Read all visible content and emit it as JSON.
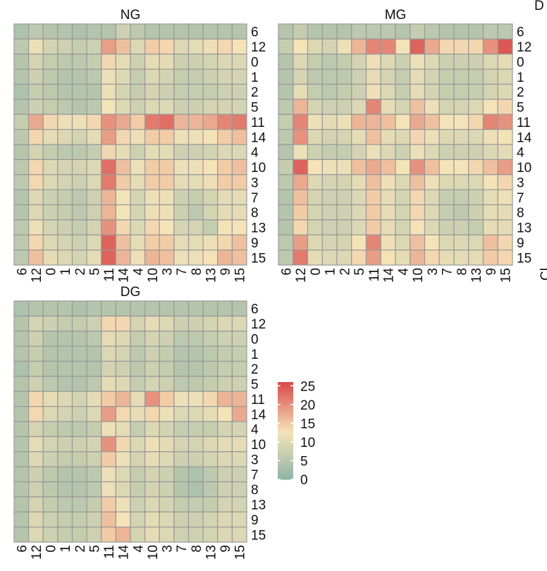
{
  "figure": {
    "edge_letter": "D",
    "edge_rotated_text": "Cl"
  },
  "colors": {
    "low": "#8db3a5",
    "mid": "#f5e3b8",
    "high": "#d94c4c",
    "grid": "#999999"
  },
  "chart_data": [
    {
      "type": "heatmap",
      "title": "NG",
      "x_labels": [
        "6",
        "12",
        "0",
        "1",
        "2",
        "5",
        "11",
        "14",
        "4",
        "10",
        "3",
        "7",
        "8",
        "13",
        "9",
        "15"
      ],
      "y_labels": [
        "6",
        "12",
        "0",
        "1",
        "2",
        "5",
        "11",
        "14",
        "4",
        "10",
        "3",
        "7",
        "8",
        "13",
        "9",
        "15"
      ],
      "values": [
        [
          4,
          6,
          5,
          5,
          4,
          5,
          5,
          8,
          6,
          5,
          5,
          5,
          5,
          5,
          5,
          5
        ],
        [
          6,
          12,
          9,
          8,
          7,
          8,
          19,
          16,
          10,
          15,
          14,
          10,
          11,
          12,
          14,
          13
        ],
        [
          5,
          9,
          7,
          6,
          6,
          7,
          14,
          11,
          8,
          11,
          11,
          8,
          8,
          9,
          10,
          10
        ],
        [
          5,
          8,
          6,
          5,
          5,
          6,
          12,
          10,
          7,
          10,
          9,
          7,
          7,
          8,
          9,
          9
        ],
        [
          4,
          7,
          6,
          5,
          5,
          5,
          12,
          9,
          7,
          9,
          8,
          7,
          7,
          7,
          8,
          8
        ],
        [
          5,
          8,
          7,
          6,
          5,
          6,
          13,
          10,
          8,
          10,
          10,
          8,
          8,
          9,
          9,
          9
        ],
        [
          7,
          18,
          14,
          12,
          12,
          14,
          20,
          18,
          15,
          22,
          23,
          17,
          17,
          18,
          21,
          22
        ],
        [
          6,
          14,
          11,
          10,
          9,
          11,
          19,
          14,
          12,
          15,
          15,
          12,
          12,
          13,
          15,
          16
        ],
        [
          5,
          9,
          7,
          6,
          6,
          7,
          14,
          11,
          8,
          11,
          11,
          8,
          8,
          9,
          10,
          10
        ],
        [
          6,
          14,
          10,
          9,
          9,
          10,
          23,
          16,
          12,
          15,
          15,
          12,
          12,
          13,
          15,
          16
        ],
        [
          6,
          14,
          10,
          9,
          8,
          10,
          22,
          15,
          11,
          15,
          15,
          11,
          11,
          12,
          15,
          15
        ],
        [
          5,
          10,
          8,
          7,
          6,
          8,
          17,
          13,
          9,
          12,
          12,
          8,
          7,
          9,
          11,
          11
        ],
        [
          5,
          10,
          8,
          7,
          6,
          8,
          17,
          13,
          9,
          12,
          12,
          8,
          6,
          9,
          11,
          11
        ],
        [
          6,
          12,
          9,
          8,
          7,
          9,
          20,
          14,
          10,
          14,
          13,
          9,
          9,
          7,
          13,
          13
        ],
        [
          6,
          14,
          10,
          9,
          8,
          10,
          24,
          16,
          11,
          15,
          15,
          11,
          11,
          12,
          14,
          16
        ],
        [
          6,
          16,
          11,
          10,
          9,
          11,
          24,
          17,
          12,
          17,
          16,
          12,
          12,
          13,
          17,
          16
        ]
      ]
    },
    {
      "type": "heatmap",
      "title": "MG",
      "x_labels": [
        "6",
        "12",
        "0",
        "1",
        "2",
        "5",
        "11",
        "14",
        "4",
        "10",
        "3",
        "7",
        "8",
        "13",
        "9",
        "15"
      ],
      "y_labels": [
        "6",
        "12",
        "0",
        "1",
        "2",
        "5",
        "11",
        "14",
        "4",
        "10",
        "3",
        "7",
        "8",
        "13",
        "9",
        "15"
      ],
      "values": [
        [
          5,
          7,
          5,
          5,
          5,
          6,
          6,
          6,
          5,
          7,
          6,
          5,
          5,
          5,
          6,
          6
        ],
        [
          7,
          13,
          10,
          9,
          12,
          17,
          21,
          21,
          13,
          24,
          18,
          14,
          14,
          14,
          20,
          25
        ],
        [
          5,
          10,
          7,
          6,
          7,
          9,
          12,
          10,
          8,
          12,
          10,
          8,
          8,
          8,
          10,
          11
        ],
        [
          5,
          9,
          6,
          6,
          6,
          8,
          11,
          9,
          7,
          11,
          9,
          7,
          7,
          7,
          9,
          10
        ],
        [
          5,
          11,
          7,
          6,
          7,
          8,
          12,
          10,
          7,
          11,
          9,
          7,
          7,
          7,
          9,
          10
        ],
        [
          6,
          17,
          9,
          8,
          8,
          10,
          21,
          11,
          9,
          16,
          12,
          9,
          9,
          10,
          13,
          14
        ],
        [
          7,
          21,
          12,
          11,
          12,
          17,
          17,
          16,
          13,
          18,
          16,
          13,
          13,
          14,
          21,
          20
        ],
        [
          6,
          20,
          10,
          9,
          9,
          11,
          16,
          11,
          10,
          14,
          12,
          10,
          10,
          10,
          12,
          13
        ],
        [
          5,
          12,
          8,
          7,
          7,
          9,
          12,
          10,
          8,
          12,
          10,
          8,
          8,
          8,
          10,
          11
        ],
        [
          7,
          24,
          13,
          12,
          12,
          16,
          18,
          16,
          13,
          20,
          16,
          13,
          13,
          14,
          16,
          19
        ],
        [
          6,
          18,
          10,
          9,
          9,
          11,
          16,
          12,
          10,
          16,
          12,
          10,
          10,
          10,
          13,
          14
        ],
        [
          5,
          16,
          9,
          8,
          8,
          10,
          15,
          11,
          9,
          14,
          10,
          7,
          7,
          8,
          11,
          12
        ],
        [
          5,
          15,
          9,
          8,
          8,
          10,
          15,
          11,
          9,
          14,
          10,
          7,
          6,
          8,
          11,
          11
        ],
        [
          5,
          14,
          9,
          8,
          8,
          10,
          15,
          11,
          9,
          13,
          10,
          8,
          8,
          7,
          11,
          11
        ],
        [
          6,
          19,
          10,
          9,
          9,
          13,
          21,
          12,
          10,
          16,
          13,
          10,
          10,
          10,
          16,
          14
        ],
        [
          6,
          22,
          11,
          10,
          10,
          14,
          19,
          13,
          11,
          17,
          14,
          11,
          11,
          11,
          15,
          14
        ]
      ]
    },
    {
      "type": "heatmap",
      "title": "DG",
      "x_labels": [
        "6",
        "12",
        "0",
        "1",
        "2",
        "5",
        "11",
        "14",
        "4",
        "10",
        "3",
        "7",
        "8",
        "13",
        "9",
        "15"
      ],
      "y_labels": [
        "6",
        "12",
        "0",
        "1",
        "2",
        "5",
        "11",
        "14",
        "4",
        "10",
        "3",
        "7",
        "8",
        "13",
        "9",
        "15"
      ],
      "values": [
        [
          4,
          5,
          5,
          5,
          4,
          5,
          5,
          5,
          5,
          5,
          5,
          5,
          5,
          5,
          5,
          5
        ],
        [
          5,
          9,
          8,
          7,
          7,
          8,
          14,
          14,
          9,
          11,
          10,
          8,
          8,
          9,
          10,
          10
        ],
        [
          5,
          8,
          5,
          5,
          5,
          6,
          11,
          10,
          7,
          9,
          8,
          6,
          6,
          7,
          8,
          8
        ],
        [
          5,
          7,
          5,
          5,
          5,
          5,
          10,
          9,
          6,
          8,
          7,
          5,
          5,
          6,
          7,
          7
        ],
        [
          4,
          7,
          5,
          5,
          5,
          5,
          9,
          8,
          6,
          8,
          7,
          5,
          5,
          6,
          7,
          7
        ],
        [
          5,
          8,
          6,
          5,
          5,
          6,
          11,
          10,
          7,
          9,
          8,
          6,
          6,
          7,
          8,
          8
        ],
        [
          5,
          14,
          11,
          10,
          9,
          11,
          15,
          17,
          11,
          20,
          15,
          12,
          12,
          14,
          17,
          17
        ],
        [
          5,
          14,
          10,
          9,
          8,
          10,
          19,
          14,
          11,
          14,
          12,
          10,
          10,
          11,
          13,
          18
        ],
        [
          5,
          9,
          7,
          6,
          6,
          7,
          12,
          11,
          7,
          10,
          9,
          7,
          7,
          7,
          9,
          9
        ],
        [
          5,
          11,
          9,
          8,
          8,
          9,
          20,
          14,
          10,
          12,
          11,
          9,
          9,
          10,
          11,
          11
        ],
        [
          5,
          10,
          8,
          7,
          7,
          8,
          15,
          12,
          9,
          11,
          10,
          8,
          8,
          9,
          10,
          10
        ],
        [
          5,
          8,
          6,
          5,
          5,
          6,
          12,
          10,
          7,
          9,
          8,
          5,
          4,
          6,
          8,
          8
        ],
        [
          5,
          8,
          6,
          5,
          5,
          6,
          12,
          10,
          7,
          9,
          8,
          5,
          4,
          6,
          8,
          8
        ],
        [
          5,
          9,
          7,
          6,
          6,
          7,
          15,
          12,
          8,
          10,
          9,
          7,
          7,
          7,
          9,
          9
        ],
        [
          5,
          10,
          8,
          7,
          7,
          8,
          16,
          13,
          9,
          11,
          10,
          8,
          8,
          9,
          10,
          10
        ],
        [
          5,
          10,
          8,
          7,
          7,
          8,
          15,
          17,
          9,
          11,
          10,
          8,
          8,
          9,
          10,
          10
        ]
      ]
    }
  ],
  "legend": {
    "ticks": [
      "25",
      "20",
      "15",
      "10",
      "5",
      "0"
    ],
    "tick_values": [
      25,
      20,
      15,
      10,
      5,
      0
    ],
    "min": 0,
    "max": 26
  }
}
